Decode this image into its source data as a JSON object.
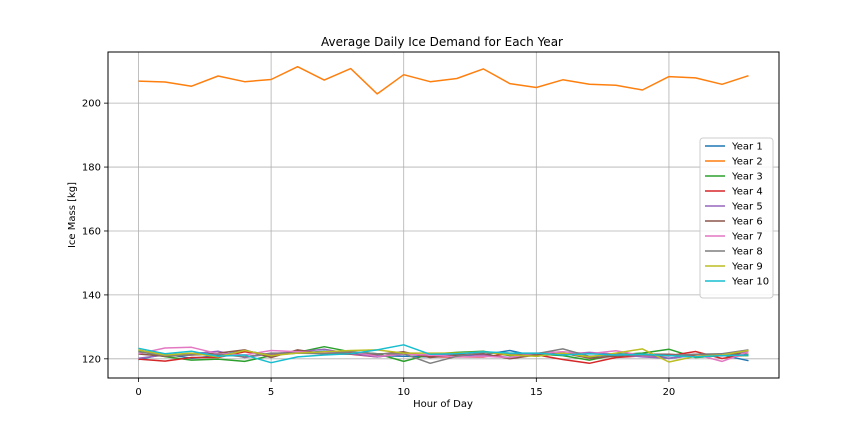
{
  "chart_data": {
    "type": "line",
    "title": "Average Daily Ice Demand for Each Year",
    "xlabel": "Hour of Day",
    "ylabel": "Ice Mass [kg]",
    "xlim": [
      -1.15,
      24.15
    ],
    "ylim": [
      114,
      216
    ],
    "xticks": [
      0,
      5,
      10,
      15,
      20
    ],
    "yticks": [
      120,
      140,
      160,
      180,
      200
    ],
    "grid": true,
    "legend_position": "center-right",
    "x": [
      0,
      1,
      2,
      3,
      4,
      5,
      6,
      7,
      8,
      9,
      10,
      11,
      12,
      13,
      14,
      15,
      16,
      17,
      18,
      19,
      20,
      21,
      22,
      23
    ],
    "series": [
      {
        "name": "Year 1",
        "color": "#1f77b4",
        "values": [
          119.8,
          121.5,
          120.2,
          121.0,
          122.5,
          121.2,
          121.8,
          122.4,
          121.6,
          121.0,
          120.8,
          120.6,
          120.9,
          121.3,
          122.6,
          120.8,
          121.7,
          120.4,
          121.6,
          121.3,
          120.2,
          121.1,
          121.2,
          119.4
        ]
      },
      {
        "name": "Year 2",
        "color": "#ff7f0e",
        "values": [
          206.9,
          206.6,
          205.3,
          208.5,
          206.7,
          207.4,
          211.4,
          207.2,
          210.8,
          202.9,
          208.9,
          206.7,
          207.7,
          210.7,
          206.1,
          204.9,
          207.3,
          205.9,
          205.6,
          204.1,
          208.3,
          207.9,
          205.9,
          208.6
        ]
      },
      {
        "name": "Year 3",
        "color": "#2ca02c",
        "values": [
          122.4,
          120.7,
          119.6,
          119.9,
          119.2,
          121.0,
          122.0,
          123.8,
          122.2,
          121.6,
          119.2,
          121.4,
          122.0,
          122.4,
          121.0,
          121.5,
          121.0,
          119.6,
          121.3,
          121.8,
          123.0,
          120.4,
          121.0,
          121.0
        ]
      },
      {
        "name": "Year 4",
        "color": "#d62728",
        "values": [
          119.9,
          119.3,
          120.4,
          120.4,
          122.2,
          121.0,
          122.5,
          121.6,
          121.4,
          120.6,
          121.8,
          120.6,
          120.6,
          120.6,
          121.6,
          121.3,
          119.8,
          118.6,
          120.4,
          120.9,
          120.9,
          122.3,
          120.1,
          121.4
        ]
      },
      {
        "name": "Year 5",
        "color": "#9467bd",
        "values": [
          120.2,
          121.2,
          121.6,
          122.4,
          120.4,
          121.6,
          122.2,
          123.0,
          121.6,
          120.6,
          121.5,
          121.2,
          121.4,
          121.2,
          120.4,
          121.6,
          121.4,
          122.0,
          121.4,
          120.6,
          120.2,
          121.1,
          120.9,
          122.4
        ]
      },
      {
        "name": "Year 6",
        "color": "#8c564b",
        "values": [
          121.5,
          120.8,
          121.2,
          121.8,
          122.8,
          120.4,
          122.8,
          121.6,
          121.8,
          121.4,
          122.2,
          120.4,
          121.2,
          121.6,
          120.0,
          121.2,
          121.8,
          120.2,
          120.8,
          121.4,
          121.4,
          121.0,
          121.6,
          121.4
        ]
      },
      {
        "name": "Year 7",
        "color": "#e377c2",
        "values": [
          121.6,
          123.4,
          123.6,
          121.6,
          121.2,
          122.6,
          122.2,
          121.8,
          122.2,
          120.8,
          121.4,
          121.2,
          120.6,
          120.8,
          120.4,
          121.8,
          122.2,
          121.6,
          122.5,
          121.0,
          121.0,
          121.4,
          119.2,
          122.2
        ]
      },
      {
        "name": "Year 8",
        "color": "#7f7f7f",
        "values": [
          122.2,
          121.0,
          121.2,
          121.4,
          120.6,
          121.8,
          121.8,
          121.6,
          122.2,
          121.6,
          121.6,
          118.6,
          120.8,
          122.0,
          121.6,
          121.6,
          123.1,
          120.8,
          121.2,
          121.2,
          121.0,
          121.4,
          121.6,
          122.8
        ]
      },
      {
        "name": "Year 9",
        "color": "#bcbd22",
        "values": [
          122.8,
          121.2,
          121.8,
          120.6,
          122.6,
          121.0,
          121.8,
          122.2,
          122.6,
          122.8,
          121.8,
          121.8,
          121.8,
          122.2,
          121.2,
          120.8,
          121.8,
          120.6,
          121.8,
          123.1,
          119.0,
          120.8,
          121.2,
          122.6
        ]
      },
      {
        "name": "Year 10",
        "color": "#17becf",
        "values": [
          123.3,
          121.6,
          122.4,
          120.8,
          121.2,
          118.8,
          120.6,
          121.2,
          121.6,
          122.8,
          124.4,
          121.4,
          121.6,
          122.2,
          121.8,
          121.8,
          121.2,
          121.6,
          121.2,
          121.4,
          121.0,
          120.6,
          121.0,
          121.2
        ]
      }
    ]
  }
}
